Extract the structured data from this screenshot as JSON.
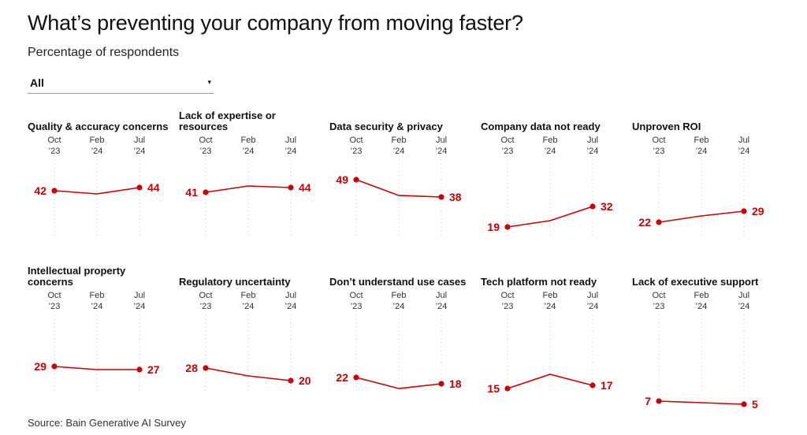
{
  "header": {
    "title": "What’s preventing your company from moving faster?",
    "subtitle": "Percentage of respondents"
  },
  "filter": {
    "value": "All",
    "caret": "▾"
  },
  "source": "Source: Bain Generative AI Survey",
  "colors": {
    "series": "#cc0000",
    "grid": "#dddddd"
  },
  "chart_data": [
    {
      "type": "line",
      "title": "Quality & accuracy concerns",
      "x": [
        "Oct '23",
        "Feb '24",
        "Jul '24"
      ],
      "tick_top": [
        "Oct",
        "Feb",
        "Jul"
      ],
      "tick_bottom": [
        "’23",
        "’24",
        "’24"
      ],
      "values": [
        42,
        40,
        44
      ],
      "labels": [
        "42",
        "",
        "44"
      ],
      "ylim": [
        0,
        55
      ]
    },
    {
      "type": "line",
      "title": "Lack of expertise or resources",
      "x": [
        "Oct '23",
        "Feb '24",
        "Jul '24"
      ],
      "tick_top": [
        "Oct",
        "Feb",
        "Jul"
      ],
      "tick_bottom": [
        "’23",
        "’24",
        "’24"
      ],
      "values": [
        41,
        45,
        44
      ],
      "labels": [
        "41",
        "",
        "44"
      ],
      "ylim": [
        0,
        55
      ]
    },
    {
      "type": "line",
      "title": "Data security & privacy",
      "x": [
        "Oct '23",
        "Feb '24",
        "Jul '24"
      ],
      "tick_top": [
        "Oct",
        "Feb",
        "Jul"
      ],
      "tick_bottom": [
        "’23",
        "’24",
        "’24"
      ],
      "values": [
        49,
        39,
        38
      ],
      "labels": [
        "49",
        "",
        "38"
      ],
      "ylim": [
        0,
        55
      ]
    },
    {
      "type": "line",
      "title": "Company data not ready",
      "x": [
        "Oct '23",
        "Feb '24",
        "Jul '24"
      ],
      "tick_top": [
        "Oct",
        "Feb",
        "Jul"
      ],
      "tick_bottom": [
        "’23",
        "’24",
        "’24"
      ],
      "values": [
        19,
        23,
        32
      ],
      "labels": [
        "19",
        "",
        "32"
      ],
      "ylim": [
        0,
        55
      ]
    },
    {
      "type": "line",
      "title": "Unproven ROI",
      "x": [
        "Oct '23",
        "Feb '24",
        "Jul '24"
      ],
      "tick_top": [
        "Oct",
        "Feb",
        "Jul"
      ],
      "tick_bottom": [
        "’23",
        "’24",
        "’24"
      ],
      "values": [
        22,
        26,
        29
      ],
      "labels": [
        "22",
        "",
        "29"
      ],
      "ylim": [
        0,
        55
      ]
    },
    {
      "type": "line",
      "title": "Intellectual property concerns",
      "x": [
        "Oct '23",
        "Feb '24",
        "Jul '24"
      ],
      "tick_top": [
        "Oct",
        "Feb",
        "Jul"
      ],
      "tick_bottom": [
        "’23",
        "’24",
        "’24"
      ],
      "values": [
        29,
        27,
        27
      ],
      "labels": [
        "29",
        "",
        "27"
      ],
      "ylim": [
        0,
        55
      ]
    },
    {
      "type": "line",
      "title": "Regulatory uncertainty",
      "x": [
        "Oct '23",
        "Feb '24",
        "Jul '24"
      ],
      "tick_top": [
        "Oct",
        "Feb",
        "Jul"
      ],
      "tick_bottom": [
        "’23",
        "’24",
        "’24"
      ],
      "values": [
        28,
        23,
        20
      ],
      "labels": [
        "28",
        "",
        "20"
      ],
      "ylim": [
        0,
        55
      ]
    },
    {
      "type": "line",
      "title": "Don’t understand use cases",
      "x": [
        "Oct '23",
        "Feb '24",
        "Jul '24"
      ],
      "tick_top": [
        "Oct",
        "Feb",
        "Jul"
      ],
      "tick_bottom": [
        "’23",
        "’24",
        "’24"
      ],
      "values": [
        22,
        15,
        18
      ],
      "labels": [
        "22",
        "",
        "18"
      ],
      "ylim": [
        0,
        55
      ]
    },
    {
      "type": "line",
      "title": "Tech platform not ready",
      "x": [
        "Oct '23",
        "Feb '24",
        "Jul '24"
      ],
      "tick_top": [
        "Oct",
        "Feb",
        "Jul"
      ],
      "tick_bottom": [
        "’23",
        "’24",
        "’24"
      ],
      "values": [
        15,
        24,
        17
      ],
      "labels": [
        "15",
        "",
        "17"
      ],
      "ylim": [
        0,
        55
      ]
    },
    {
      "type": "line",
      "title": "Lack of executive support",
      "x": [
        "Oct '23",
        "Feb '24",
        "Jul '24"
      ],
      "tick_top": [
        "Oct",
        "Feb",
        "Jul"
      ],
      "tick_bottom": [
        "’23",
        "’24",
        "’24"
      ],
      "values": [
        7,
        6,
        5
      ],
      "labels": [
        "7",
        "",
        "5"
      ],
      "ylim": [
        0,
        55
      ]
    }
  ]
}
